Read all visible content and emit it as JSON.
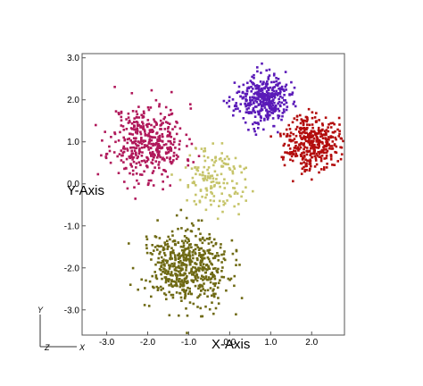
{
  "chart_data": {
    "type": "scatter",
    "title": "",
    "xlabel": "X-Axis",
    "ylabel": "Y-Axis",
    "xlim": [
      -3.6,
      2.8
    ],
    "ylim": [
      -3.6,
      3.1
    ],
    "x_ticks": [
      -3.0,
      -2.0,
      -1.0,
      0.0,
      1.0,
      2.0
    ],
    "x_tick_labels": [
      "-3.0",
      "-2.0",
      "-1.0",
      "0.0",
      "1.0",
      "2.0"
    ],
    "y_ticks": [
      -3.0,
      -2.0,
      -1.0,
      0.0,
      1.0,
      2.0,
      3.0
    ],
    "y_tick_labels": [
      "-3.0",
      "-2.0",
      "-1.0",
      "0.0",
      "1.0",
      "2.0",
      "3.0"
    ],
    "grid": false,
    "axis_triad": {
      "y_label": "Y",
      "z_label": "Z",
      "x_label": "X"
    },
    "series": [
      {
        "color": "#b0185a",
        "cluster": {
          "center": [
            -2.0,
            1.0
          ],
          "spread": [
            0.45,
            0.45
          ],
          "count": 420,
          "seed": 11
        }
      },
      {
        "color": "#5a1ab8",
        "cluster": {
          "center": [
            0.8,
            2.0
          ],
          "spread": [
            0.32,
            0.28
          ],
          "count": 380,
          "seed": 23
        }
      },
      {
        "color": "#b30d0d",
        "cluster": {
          "center": [
            2.0,
            1.0
          ],
          "spread": [
            0.32,
            0.32
          ],
          "count": 380,
          "seed": 37
        }
      },
      {
        "color": "#c6c46a",
        "cluster": {
          "center": [
            -0.4,
            0.1
          ],
          "spread": [
            0.4,
            0.4
          ],
          "count": 150,
          "seed": 51
        }
      },
      {
        "color": "#6f6a14",
        "cluster": {
          "center": [
            -1.0,
            -2.0
          ],
          "spread": [
            0.48,
            0.45
          ],
          "count": 560,
          "seed": 73
        }
      }
    ]
  }
}
